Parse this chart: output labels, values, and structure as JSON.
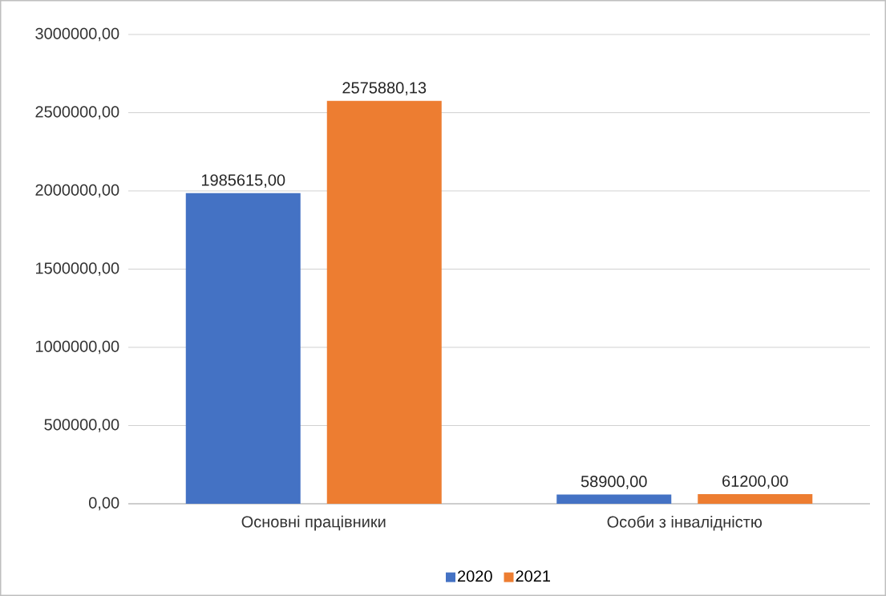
{
  "chart_data": {
    "type": "bar",
    "categories": [
      "Основні працівники",
      "Особи з інвалідністю"
    ],
    "series": [
      {
        "name": "2020",
        "color": "#4472c4",
        "values": [
          1985615.0,
          58900.0
        ],
        "value_labels": [
          "1985615,00",
          "58900,00"
        ]
      },
      {
        "name": "2021",
        "color": "#ed7d31",
        "values": [
          2575880.13,
          61200.0
        ],
        "value_labels": [
          "2575880,13",
          "61200,00"
        ]
      }
    ],
    "ylim": [
      0,
      3000000
    ],
    "yticks": [
      {
        "value": 0,
        "label": "0,00"
      },
      {
        "value": 500000,
        "label": "500000,00"
      },
      {
        "value": 1000000,
        "label": "1000000,00"
      },
      {
        "value": 1500000,
        "label": "1500000,00"
      },
      {
        "value": 2000000,
        "label": "2000000,00"
      },
      {
        "value": 2500000,
        "label": "2500000,00"
      },
      {
        "value": 3000000,
        "label": "3000000,00"
      }
    ],
    "grid": "y",
    "legend": "bottom"
  }
}
